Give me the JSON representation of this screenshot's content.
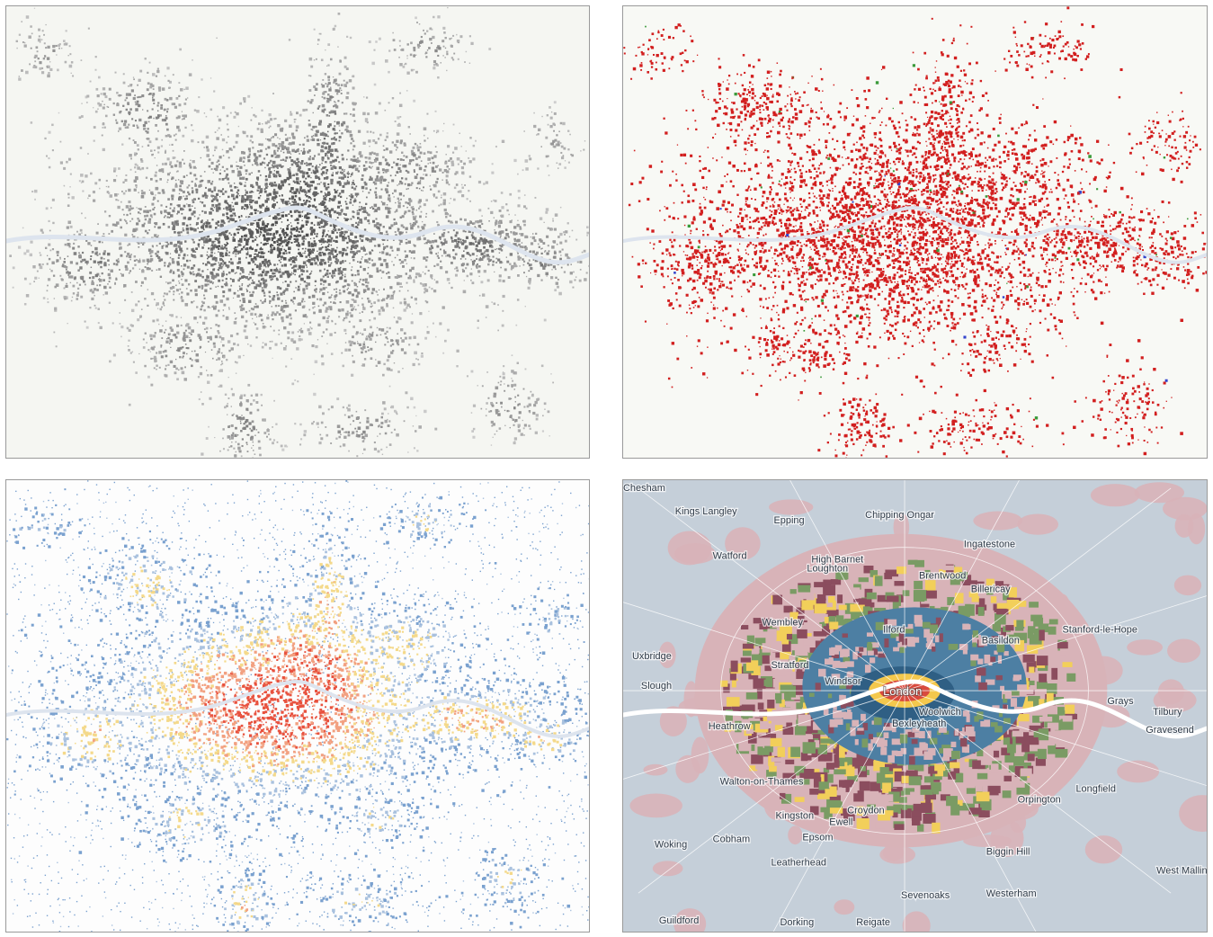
{
  "panels": [
    {
      "id": "p1",
      "style": "grayscale-buildings",
      "land": "#f5f6f2",
      "water": "#dde4ee"
    },
    {
      "id": "p2",
      "style": "red-urban-landcover",
      "land": "#f8f9f5",
      "water": "#dde4ee"
    },
    {
      "id": "p3",
      "style": "heat-dots",
      "land": "#fdfdfd",
      "water": "#dde4ee"
    },
    {
      "id": "p4",
      "style": "categorical-zones",
      "land": "#c5cfd9",
      "water": "#ffffff"
    }
  ],
  "palette": {
    "gray": "#5f5f5f",
    "red": "#d21f1f",
    "heat": [
      "#e8523f",
      "#f2a080",
      "#f4d98a",
      "#a9c1de",
      "#7aa1cf"
    ],
    "zones": {
      "core_red": "#d84a3e",
      "core_yellow": "#f4c84d",
      "blue": "#4d7fa3",
      "green": "#7a9b64",
      "maroon": "#8b4d5e",
      "pink": "#d8b3b8",
      "yellow": "#f2cf5a"
    }
  },
  "place_labels": {
    "london": "London",
    "towns": [
      "Chesham",
      "Kings Langley",
      "Epping",
      "Chipping Ongar",
      "Ingatestone",
      "Watford",
      "High Barnet",
      "Loughton",
      "Brentwood",
      "Billericay",
      "Uxbridge",
      "Wembley",
      "Ilford",
      "Basildon",
      "Slough",
      "Stratford",
      "Windsor",
      "Woolwich",
      "Stanford-le-Hope",
      "Grays",
      "Tilbury",
      "Gravesend",
      "Bexleyheath",
      "Walton-on-Thames",
      "Orpington",
      "Longfield",
      "Woking",
      "Cobham",
      "Biggin Hill",
      "Leatherhead",
      "West Malling",
      "Westerham",
      "Sevenoaks",
      "Guildford",
      "Dorking",
      "Reigate",
      "Ewell",
      "Epsom",
      "Croydon",
      "Kingston",
      "Heathrow"
    ]
  }
}
